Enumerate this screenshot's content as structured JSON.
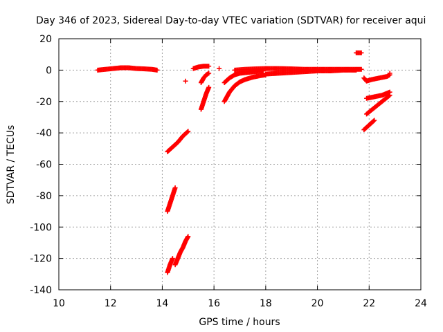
{
  "chart_data": {
    "type": "scatter",
    "title": "Day 346 of 2023, Sidereal Day-to-day VTEC variation (SDTVAR) for receiver aqui",
    "xlabel": "GPS time / hours",
    "ylabel": "SDTVAR / TECUs",
    "xlim": [
      10,
      24
    ],
    "ylim": [
      -140,
      20
    ],
    "xticks": [
      10,
      12,
      14,
      16,
      18,
      20,
      22,
      24
    ],
    "yticks": [
      -140,
      -120,
      -100,
      -80,
      -60,
      -40,
      -20,
      0,
      20
    ],
    "grid": true,
    "marker": "plus",
    "color": "#ff0000",
    "series": [
      {
        "x": [
          11.5,
          11.8,
          12.1,
          12.4,
          12.7,
          13.0,
          13.3,
          13.6,
          13.8
        ],
        "y": [
          0,
          0.5,
          1,
          1.5,
          1.5,
          1,
          0.8,
          0.5,
          0
        ]
      },
      {
        "x": [
          14.2,
          14.4,
          14.6,
          14.8,
          15.0
        ],
        "y": [
          -52,
          -49,
          -46,
          -42,
          -39
        ]
      },
      {
        "x": [
          14.2,
          14.3,
          14.4,
          14.5
        ],
        "y": [
          -90,
          -85,
          -80,
          -75
        ]
      },
      {
        "x": [
          14.2,
          14.3,
          14.4
        ],
        "y": [
          -129,
          -124,
          -120
        ]
      },
      {
        "x": [
          14.5,
          14.6,
          14.7,
          14.8,
          14.9,
          15.0
        ],
        "y": [
          -124,
          -120,
          -116,
          -113,
          -109,
          -106
        ]
      },
      {
        "x": [
          14.9
        ],
        "y": [
          -7
        ]
      },
      {
        "x": [
          15.5,
          15.6,
          15.7,
          15.8
        ],
        "y": [
          -25,
          -20,
          -15,
          -11
        ]
      },
      {
        "x": [
          15.5,
          15.6,
          15.7,
          15.8
        ],
        "y": [
          -8,
          -5,
          -3,
          -2
        ]
      },
      {
        "x": [
          15.2,
          15.4,
          15.6,
          15.8
        ],
        "y": [
          1,
          2,
          2.5,
          2.5
        ]
      },
      {
        "x": [
          16.2
        ],
        "y": [
          1
        ]
      },
      {
        "x": [
          16.4,
          16.6,
          16.8,
          17.0,
          17.2,
          17.5,
          17.8,
          18.0
        ],
        "y": [
          -20,
          -14,
          -10,
          -7.5,
          -6,
          -4.5,
          -3.5,
          -3
        ]
      },
      {
        "x": [
          16.4,
          16.6,
          16.8,
          17.0,
          17.3,
          17.6,
          17.9
        ],
        "y": [
          -8,
          -5,
          -3,
          -2,
          -1.5,
          -1,
          -0.5
        ]
      },
      {
        "x": [
          16.8,
          17.2,
          17.6,
          18.0
        ],
        "y": [
          0,
          0.5,
          0.8,
          1
        ]
      },
      {
        "x": [
          18.0,
          18.5,
          19.0,
          19.5,
          20.0,
          20.5,
          21.0,
          21.5
        ],
        "y": [
          -2.5,
          -2,
          -1.5,
          -1,
          -0.5,
          -0.5,
          0,
          0
        ]
      },
      {
        "x": [
          18.0,
          18.5,
          19.0,
          19.5,
          20.0,
          20.5,
          21.0,
          21.7
        ],
        "y": [
          1,
          1,
          0.8,
          0.5,
          0.5,
          0.5,
          0.5,
          0.5
        ]
      },
      {
        "x": [
          21.5,
          21.7
        ],
        "y": [
          11,
          11
        ]
      },
      {
        "x": [
          21.8,
          22.0,
          22.2
        ],
        "y": [
          -38,
          -35,
          -32
        ]
      },
      {
        "x": [
          21.9,
          22.2,
          22.5,
          22.8
        ],
        "y": [
          -28,
          -24,
          -20,
          -16
        ]
      },
      {
        "x": [
          21.9,
          22.2,
          22.5,
          22.8
        ],
        "y": [
          -18,
          -17,
          -16,
          -14
        ]
      },
      {
        "x": [
          21.8,
          21.9,
          22.1,
          22.4,
          22.7,
          22.8
        ],
        "y": [
          -5,
          -7,
          -6,
          -5,
          -4,
          -3
        ]
      },
      {
        "x": [
          22.8
        ],
        "y": [
          -2
        ]
      }
    ]
  }
}
